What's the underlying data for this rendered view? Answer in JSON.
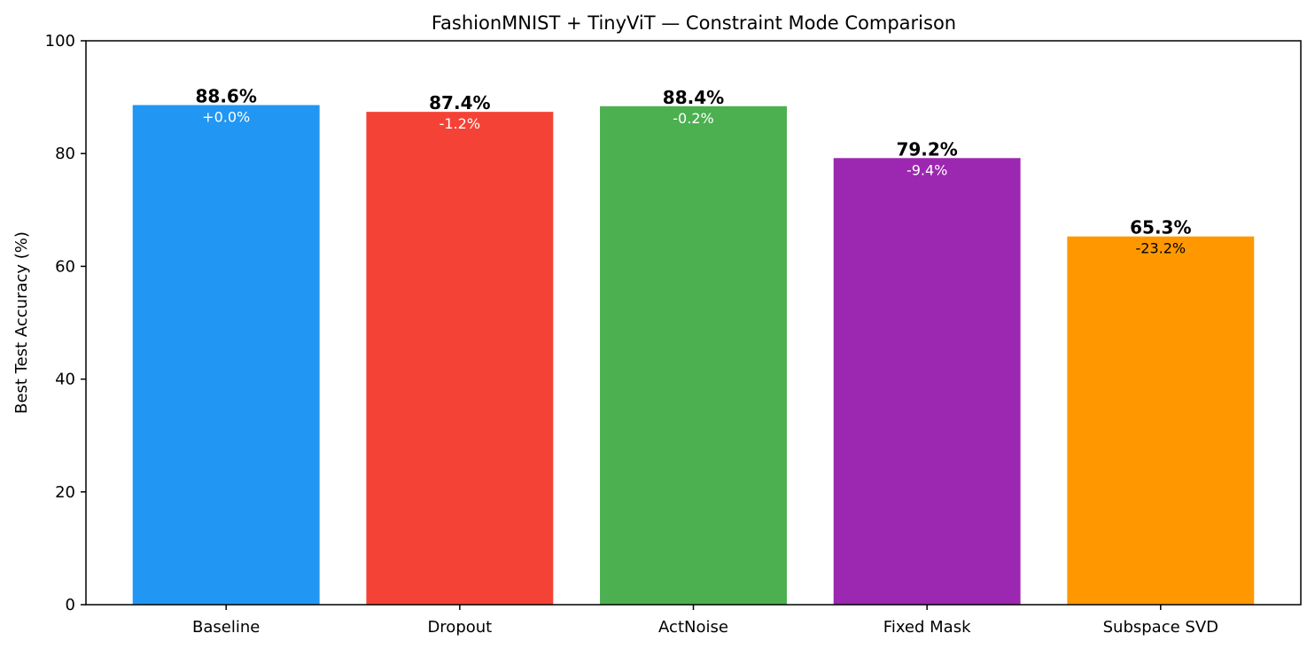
{
  "chart_data": {
    "type": "bar",
    "title": "FashionMNIST + TinyViT — Constraint Mode Comparison",
    "xlabel": "",
    "ylabel": "Best Test Accuracy (%)",
    "ylim": [
      0,
      100
    ],
    "yticks": [
      0,
      20,
      40,
      60,
      80,
      100
    ],
    "grid": false,
    "categories": [
      "Baseline",
      "Dropout",
      "ActNoise",
      "Fixed Mask",
      "Subspace SVD"
    ],
    "values": [
      88.6,
      87.4,
      88.4,
      79.2,
      65.3
    ],
    "value_labels": [
      "88.6%",
      "87.4%",
      "88.4%",
      "79.2%",
      "65.3%"
    ],
    "delta_labels": [
      "+0.0%",
      "-1.2%",
      "-0.2%",
      "-9.4%",
      "-23.2%"
    ],
    "bar_colors": [
      "#2196F3",
      "#F44336",
      "#4CAF50",
      "#9C27B0",
      "#FF9800"
    ],
    "delta_label_colors": [
      "#ffffff",
      "#ffffff",
      "#ffffff",
      "#ffffff",
      "#000000"
    ]
  }
}
